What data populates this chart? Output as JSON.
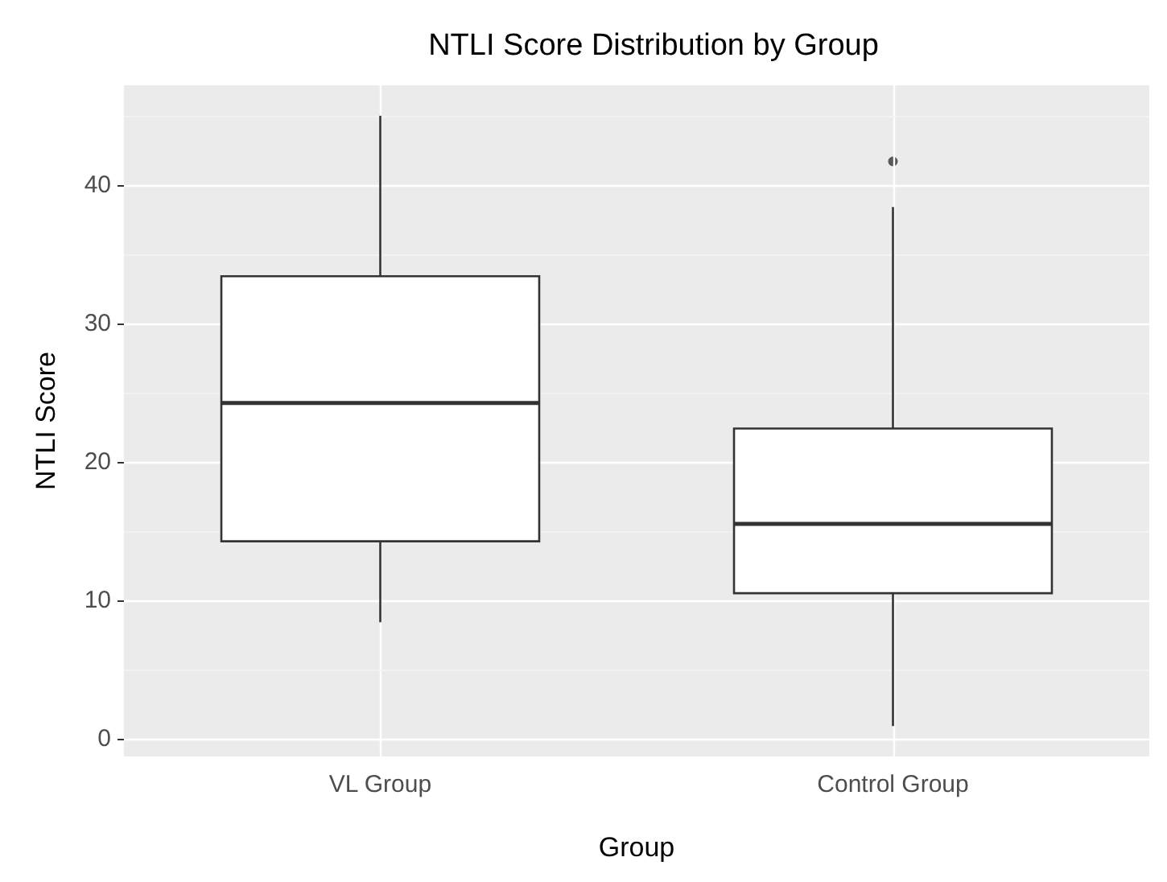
{
  "chart_data": {
    "type": "box",
    "title": "NTLI Score Distribution by Group",
    "xlabel": "Group",
    "ylabel": "NTLI Score",
    "categories": [
      "VL Group",
      "Control Group"
    ],
    "boxes": [
      {
        "low": 8.4,
        "q1": 14.25,
        "median": 24.25,
        "q3": 33.4,
        "high": 45
      },
      {
        "low": 0.9,
        "q1": 10.5,
        "median": 15.5,
        "q3": 22.4,
        "high": 38.4,
        "outliers": [
          41.7
        ]
      }
    ],
    "ylim": [
      -1.3,
      47.2
    ],
    "yticks": [
      0,
      10,
      20,
      30,
      40
    ],
    "grid": true
  }
}
